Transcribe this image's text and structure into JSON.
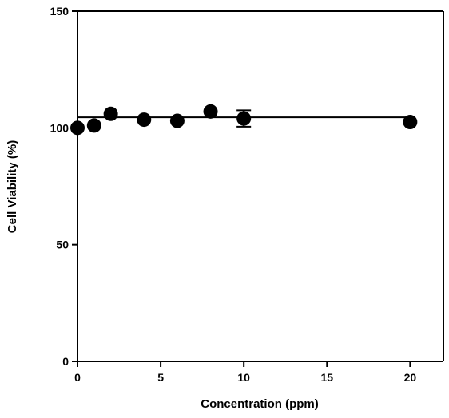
{
  "chart_data": {
    "type": "scatter",
    "title": "",
    "xlabel": "Concentration (ppm)",
    "ylabel": "Cell Viability (%)",
    "xlim": [
      0,
      22
    ],
    "ylim": [
      0,
      150
    ],
    "x_ticks": [
      0,
      5,
      10,
      15,
      20
    ],
    "y_ticks": [
      0,
      50,
      100,
      150
    ],
    "x_tick_labels": [
      "0",
      "5",
      "10",
      "15",
      "20"
    ],
    "y_tick_labels": [
      "0",
      "50",
      "100",
      "150"
    ],
    "grid": false,
    "legend": "none",
    "marker_color": "#000000",
    "series": [
      {
        "x": [
          0,
          1,
          2,
          4,
          6,
          8,
          10,
          20
        ],
        "y": [
          100,
          101,
          106,
          103.5,
          103,
          107,
          104,
          102.5
        ],
        "error": [
          0,
          0,
          0,
          0,
          0,
          0,
          3.5,
          0
        ]
      }
    ],
    "fit_line": {
      "type": "horizontal",
      "y": 104.5,
      "x_range": [
        0,
        20
      ]
    }
  }
}
